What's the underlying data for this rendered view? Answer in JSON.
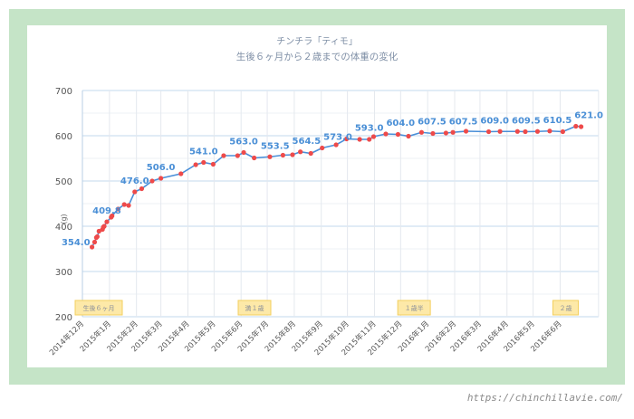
{
  "chart_data": {
    "type": "line",
    "title": "チンチラ「ティモ」",
    "subtitle": "生後６ヶ月から２歳までの体重の変化",
    "ylabel": "(g)",
    "xlabel": "",
    "ylim": [
      200,
      700
    ],
    "yticks": [
      200,
      300,
      400,
      500,
      600,
      700
    ],
    "xlim": [
      "2014-12-01",
      "2016-07-15"
    ],
    "xticks": [
      {
        "date": "2014-12-01",
        "label": "2014年12月"
      },
      {
        "date": "2015-01-01",
        "label": "2015年1月"
      },
      {
        "date": "2015-02-01",
        "label": "2015年2月"
      },
      {
        "date": "2015-03-01",
        "label": "2015年3月"
      },
      {
        "date": "2015-04-01",
        "label": "2015年4月"
      },
      {
        "date": "2015-05-01",
        "label": "2015年5月"
      },
      {
        "date": "2015-06-01",
        "label": "2015年6月"
      },
      {
        "date": "2015-07-01",
        "label": "2015年7月"
      },
      {
        "date": "2015-08-01",
        "label": "2015年8月"
      },
      {
        "date": "2015-09-01",
        "label": "2015年9月"
      },
      {
        "date": "2015-10-01",
        "label": "2015年10月"
      },
      {
        "date": "2015-11-01",
        "label": "2015年11月"
      },
      {
        "date": "2015-12-01",
        "label": "2015年12月"
      },
      {
        "date": "2016-01-01",
        "label": "2016年1月"
      },
      {
        "date": "2016-02-01",
        "label": "2016年2月"
      },
      {
        "date": "2016-03-01",
        "label": "2016年3月"
      },
      {
        "date": "2016-04-01",
        "label": "2016年4月"
      },
      {
        "date": "2016-05-01",
        "label": "2016年5月"
      },
      {
        "date": "2016-06-01",
        "label": "2016年6月"
      }
    ],
    "grid": true,
    "legend": "none",
    "line_color": "#4a8fd8",
    "marker_color": "#ee4a4a",
    "label_color": "#4a8fd6",
    "points": [
      {
        "x": "2014-12-12",
        "y": 354.0,
        "label": "354.0"
      },
      {
        "x": "2014-12-15",
        "y": 365
      },
      {
        "x": "2014-12-17",
        "y": 375
      },
      {
        "x": "2014-12-18",
        "y": 377
      },
      {
        "x": "2014-12-20",
        "y": 389
      },
      {
        "x": "2014-12-24",
        "y": 393
      },
      {
        "x": "2014-12-25",
        "y": 398
      },
      {
        "x": "2014-12-26",
        "y": 400
      },
      {
        "x": "2014-12-29",
        "y": 409.8,
        "label": "409.8"
      },
      {
        "x": "2015-01-03",
        "y": 420
      },
      {
        "x": "2015-01-04",
        "y": 423
      },
      {
        "x": "2015-01-11",
        "y": 438
      },
      {
        "x": "2015-01-18",
        "y": 448
      },
      {
        "x": "2015-01-23",
        "y": 446
      },
      {
        "x": "2015-01-30",
        "y": 476.0,
        "label": "476.0"
      },
      {
        "x": "2015-02-07",
        "y": 483
      },
      {
        "x": "2015-02-19",
        "y": 500
      },
      {
        "x": "2015-03-01",
        "y": 506.0,
        "label": "506.0"
      },
      {
        "x": "2015-03-24",
        "y": 516
      },
      {
        "x": "2015-04-10",
        "y": 536
      },
      {
        "x": "2015-04-19",
        "y": 541.0,
        "label": "541.0"
      },
      {
        "x": "2015-04-30",
        "y": 537
      },
      {
        "x": "2015-05-12",
        "y": 556
      },
      {
        "x": "2015-05-28",
        "y": 556
      },
      {
        "x": "2015-06-04",
        "y": 563.0,
        "label": "563.0"
      },
      {
        "x": "2015-06-16",
        "y": 551
      },
      {
        "x": "2015-07-04",
        "y": 553.5,
        "label": "553.5"
      },
      {
        "x": "2015-07-19",
        "y": 557
      },
      {
        "x": "2015-07-30",
        "y": 558
      },
      {
        "x": "2015-08-08",
        "y": 564.5,
        "label": "564.5"
      },
      {
        "x": "2015-08-20",
        "y": 561
      },
      {
        "x": "2015-09-02",
        "y": 573.0,
        "label": "573.0"
      },
      {
        "x": "2015-09-18",
        "y": 580
      },
      {
        "x": "2015-09-30",
        "y": 593.0,
        "label": "593.0"
      },
      {
        "x": "2015-10-15",
        "y": 592
      },
      {
        "x": "2015-10-26",
        "y": 592
      },
      {
        "x": "2015-10-31",
        "y": 598
      },
      {
        "x": "2015-11-14",
        "y": 604.0,
        "label": "604.0"
      },
      {
        "x": "2015-11-28",
        "y": 603
      },
      {
        "x": "2015-12-10",
        "y": 599
      },
      {
        "x": "2015-12-25",
        "y": 607.5,
        "label": "607.5"
      },
      {
        "x": "2016-01-07",
        "y": 605
      },
      {
        "x": "2016-01-22",
        "y": 606
      },
      {
        "x": "2016-01-30",
        "y": 607.5,
        "label": "607.5"
      },
      {
        "x": "2016-02-14",
        "y": 610
      },
      {
        "x": "2016-03-11",
        "y": 609.0,
        "label": "609.0"
      },
      {
        "x": "2016-03-24",
        "y": 609.5,
        "label": "609.5"
      },
      {
        "x": "2016-04-13",
        "y": 609.5
      },
      {
        "x": "2016-04-22",
        "y": 609
      },
      {
        "x": "2016-05-06",
        "y": 609.5
      },
      {
        "x": "2016-05-20",
        "y": 610.5,
        "label": "610.5"
      },
      {
        "x": "2016-06-04",
        "y": 609
      },
      {
        "x": "2016-06-19",
        "y": 621.0,
        "label": "621.0"
      },
      {
        "x": "2016-06-25",
        "y": 620
      }
    ],
    "annotations": [
      {
        "x": "2014-12-01",
        "text": "生後６ヶ月"
      },
      {
        "x": "2015-06-06",
        "text": "満１歳"
      },
      {
        "x": "2015-12-06",
        "text": "１歳半"
      },
      {
        "x": "2016-06-01",
        "text": "２歳"
      }
    ],
    "annotation_fill": "#fde9a8",
    "annotation_border": "#f3cf5e"
  },
  "frame_color": "#c5e4c7",
  "watermark": "https://chinchillavie.com/"
}
